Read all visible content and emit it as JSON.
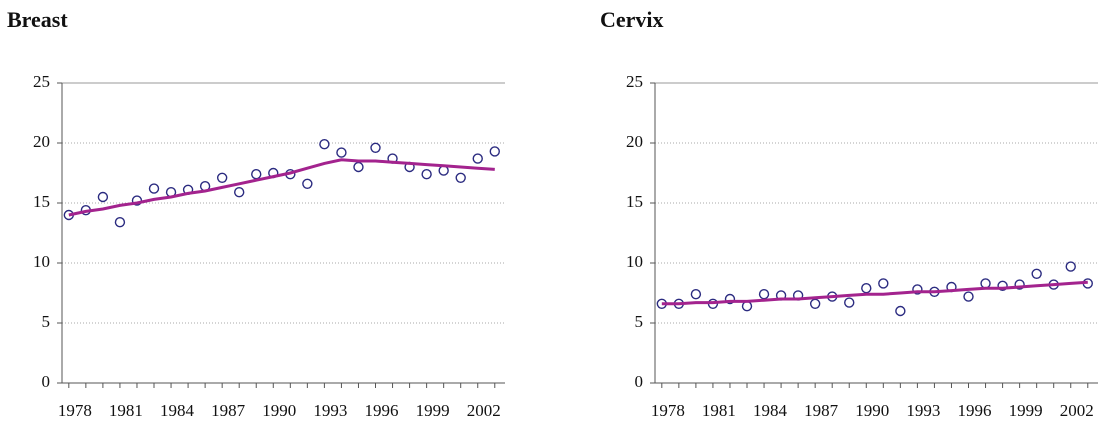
{
  "chart_data": [
    {
      "type": "scatter",
      "title": "Breast",
      "x": [
        1978,
        1979,
        1980,
        1981,
        1982,
        1983,
        1984,
        1985,
        1986,
        1987,
        1988,
        1989,
        1990,
        1991,
        1992,
        1993,
        1994,
        1995,
        1996,
        1997,
        1998,
        1999,
        2000,
        2001,
        2002,
        2003
      ],
      "series": [
        {
          "type": "scatter",
          "color": "#2b2b80",
          "values": [
            14.0,
            14.4,
            15.5,
            13.4,
            15.2,
            16.2,
            15.9,
            16.1,
            16.4,
            17.1,
            15.9,
            17.4,
            17.5,
            17.4,
            16.6,
            19.9,
            19.2,
            18.0,
            19.6,
            18.7,
            18.0,
            17.4,
            17.7,
            17.1,
            18.7,
            19.3
          ]
        },
        {
          "type": "line",
          "color": "#a3238e",
          "values": [
            14.0,
            14.3,
            14.5,
            14.8,
            15.0,
            15.3,
            15.5,
            15.8,
            16.0,
            16.3,
            16.6,
            16.9,
            17.2,
            17.5,
            17.9,
            18.3,
            18.6,
            18.5,
            18.5,
            18.4,
            18.3,
            18.2,
            18.1,
            18.0,
            17.9,
            17.8
          ]
        }
      ],
      "xlim": [
        1977.6,
        2003.6
      ],
      "xticks": [
        1978,
        1981,
        1984,
        1987,
        1990,
        1993,
        1996,
        1999,
        2002
      ],
      "ylim": [
        0,
        25
      ],
      "yticks": [
        0,
        5,
        10,
        15,
        20,
        25
      ],
      "grid": true
    },
    {
      "type": "scatter",
      "title": "Cervix",
      "x": [
        1978,
        1979,
        1980,
        1981,
        1982,
        1983,
        1984,
        1985,
        1986,
        1987,
        1988,
        1989,
        1990,
        1991,
        1992,
        1993,
        1994,
        1995,
        1996,
        1997,
        1998,
        1999,
        2000,
        2001,
        2002,
        2003
      ],
      "series": [
        {
          "type": "scatter",
          "color": "#2b2b80",
          "values": [
            6.6,
            6.6,
            7.4,
            6.6,
            7.0,
            6.4,
            7.4,
            7.3,
            7.3,
            6.6,
            7.2,
            6.7,
            7.9,
            8.3,
            6.0,
            7.8,
            7.6,
            8.0,
            7.2,
            8.3,
            8.1,
            8.2,
            9.1,
            8.2,
            9.7,
            8.3
          ]
        },
        {
          "type": "line",
          "color": "#a3238e",
          "values": [
            6.6,
            6.6,
            6.7,
            6.7,
            6.8,
            6.8,
            6.9,
            7.0,
            7.0,
            7.1,
            7.2,
            7.3,
            7.4,
            7.4,
            7.5,
            7.6,
            7.6,
            7.7,
            7.8,
            7.9,
            7.9,
            8.0,
            8.1,
            8.2,
            8.3,
            8.4
          ]
        }
      ],
      "xlim": [
        1977.6,
        2003.6
      ],
      "xticks": [
        1978,
        1981,
        1984,
        1987,
        1990,
        1993,
        1996,
        1999,
        2002
      ],
      "ylim": [
        0,
        25
      ],
      "yticks": [
        0,
        5,
        10,
        15,
        20,
        25
      ],
      "grid": true
    }
  ]
}
